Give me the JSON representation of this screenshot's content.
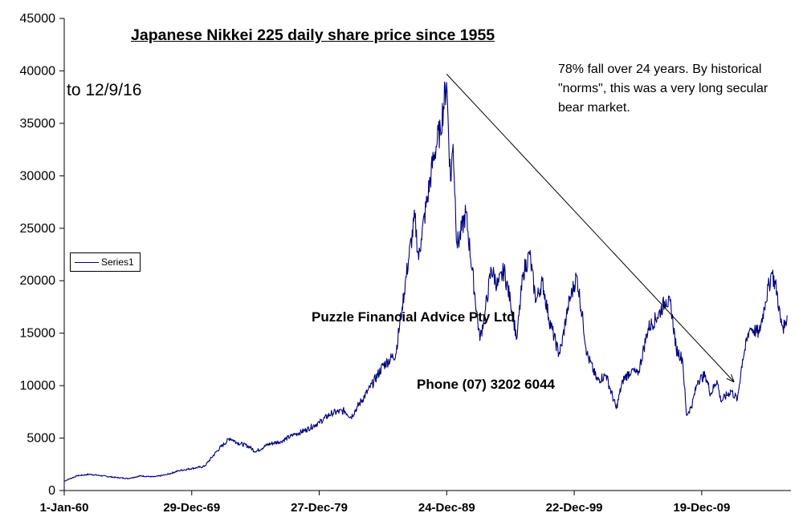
{
  "chart_data": {
    "type": "line",
    "title": "Japanese Nikkei 225 daily share price since 1955",
    "xlabel": "",
    "ylabel": "",
    "ylim": [
      0,
      45000
    ],
    "grid": false,
    "legend": {
      "position": "left",
      "entries": [
        "Series1"
      ]
    },
    "x_tick_labels": [
      "1-Jan-60",
      "29-Dec-69",
      "27-Dec-79",
      "24-Dec-89",
      "22-Dec-99",
      "19-Dec-09"
    ],
    "x_tick_years": [
      1960.0,
      1970.0,
      1980.0,
      1990.0,
      2000.0,
      2010.0
    ],
    "y_ticks": [
      0,
      5000,
      10000,
      15000,
      20000,
      25000,
      30000,
      35000,
      40000,
      45000
    ],
    "series": [
      {
        "name": "Series1",
        "color": "#00007a",
        "points": [
          [
            1960.0,
            900
          ],
          [
            1961.0,
            1400
          ],
          [
            1962.0,
            1550
          ],
          [
            1963.0,
            1400
          ],
          [
            1964.0,
            1250
          ],
          [
            1965.0,
            1150
          ],
          [
            1966.0,
            1400
          ],
          [
            1967.0,
            1300
          ],
          [
            1968.0,
            1500
          ],
          [
            1969.0,
            1900
          ],
          [
            1970.0,
            2100
          ],
          [
            1971.0,
            2300
          ],
          [
            1972.0,
            3800
          ],
          [
            1973.0,
            5000
          ],
          [
            1973.5,
            4600
          ],
          [
            1974.5,
            4200
          ],
          [
            1975.0,
            3700
          ],
          [
            1976.0,
            4400
          ],
          [
            1977.0,
            4700
          ],
          [
            1978.0,
            5300
          ],
          [
            1979.0,
            5800
          ],
          [
            1980.0,
            6500
          ],
          [
            1981.0,
            7400
          ],
          [
            1982.0,
            7600
          ],
          [
            1982.5,
            7000
          ],
          [
            1983.0,
            8000
          ],
          [
            1984.0,
            9800
          ],
          [
            1985.0,
            11900
          ],
          [
            1986.0,
            13000
          ],
          [
            1986.5,
            17500
          ],
          [
            1987.0,
            22000
          ],
          [
            1987.5,
            26000
          ],
          [
            1987.8,
            22000
          ],
          [
            1988.0,
            24000
          ],
          [
            1988.5,
            28000
          ],
          [
            1989.0,
            32000
          ],
          [
            1989.5,
            34500
          ],
          [
            1989.99,
            38900
          ],
          [
            1990.3,
            29500
          ],
          [
            1990.5,
            33000
          ],
          [
            1990.8,
            23500
          ],
          [
            1991.0,
            24000
          ],
          [
            1991.5,
            26500
          ],
          [
            1992.0,
            21000
          ],
          [
            1992.6,
            14300
          ],
          [
            1993.0,
            17000
          ],
          [
            1993.5,
            21100
          ],
          [
            1994.0,
            19500
          ],
          [
            1994.5,
            21000
          ],
          [
            1995.0,
            18000
          ],
          [
            1995.5,
            14500
          ],
          [
            1996.0,
            20800
          ],
          [
            1996.5,
            22500
          ],
          [
            1997.0,
            18000
          ],
          [
            1997.5,
            20000
          ],
          [
            1998.0,
            16500
          ],
          [
            1998.8,
            13000
          ],
          [
            1999.0,
            13800
          ],
          [
            1999.5,
            17500
          ],
          [
            2000.2,
            20500
          ],
          [
            2000.7,
            16000
          ],
          [
            2001.0,
            13000
          ],
          [
            2001.8,
            10500
          ],
          [
            2002.5,
            11000
          ],
          [
            2003.3,
            7800
          ],
          [
            2003.8,
            10500
          ],
          [
            2004.5,
            11500
          ],
          [
            2005.0,
            11000
          ],
          [
            2005.8,
            15500
          ],
          [
            2006.5,
            16500
          ],
          [
            2007.2,
            18200
          ],
          [
            2007.6,
            17500
          ],
          [
            2008.0,
            13500
          ],
          [
            2008.5,
            12500
          ],
          [
            2008.8,
            7200
          ],
          [
            2009.2,
            8000
          ],
          [
            2009.7,
            10500
          ],
          [
            2010.3,
            11000
          ],
          [
            2010.7,
            9200
          ],
          [
            2011.2,
            10500
          ],
          [
            2011.5,
            8500
          ],
          [
            2012.3,
            9500
          ],
          [
            2012.8,
            8700
          ],
          [
            2013.2,
            12500
          ],
          [
            2013.8,
            15500
          ],
          [
            2014.5,
            15000
          ],
          [
            2015.0,
            18000
          ],
          [
            2015.5,
            20800
          ],
          [
            2015.9,
            19000
          ],
          [
            2016.2,
            16000
          ],
          [
            2016.5,
            15500
          ],
          [
            2016.7,
            16700
          ]
        ]
      }
    ],
    "annotations": {
      "as_of": "to 12/9/16",
      "note": "78% fall over 24 years.  By historical \"norms\", this was a very long secular bear market.",
      "company": "Puzzle Financial Advice Pty Ltd",
      "phone": "Phone (07) 3202 6044"
    },
    "trend_arrow": {
      "from": [
        1989.99,
        39700
      ],
      "to": [
        2012.5,
        10400
      ]
    }
  }
}
